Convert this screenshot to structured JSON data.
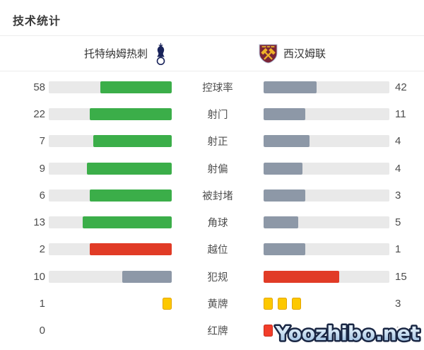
{
  "title": "技术统计",
  "header": {
    "home_team": "托特纳姆热刺",
    "away_team": "西汉姆联"
  },
  "colors": {
    "green": "#3bae49",
    "slate": "#8d98a7",
    "red": "#e13b26",
    "track": "#e9e9e9",
    "yellow_card_fill": "#fdc800",
    "yellow_card_border": "#e3a400",
    "red_card_fill": "#f23d2a",
    "red_card_border": "#c92d1d",
    "home_badge_navy": "#19235a",
    "away_badge_claret": "#7b2537",
    "away_badge_gold": "#efb328",
    "watermark_outline": "#1a2744"
  },
  "stats": [
    {
      "label": "控球率",
      "home": 58,
      "away": 42,
      "type": "bar",
      "home_color": "green",
      "away_color": "slate"
    },
    {
      "label": "射门",
      "home": 22,
      "away": 11,
      "type": "bar",
      "home_color": "green",
      "away_color": "slate"
    },
    {
      "label": "射正",
      "home": 7,
      "away": 4,
      "type": "bar",
      "home_color": "green",
      "away_color": "slate"
    },
    {
      "label": "射偏",
      "home": 9,
      "away": 4,
      "type": "bar",
      "home_color": "green",
      "away_color": "slate"
    },
    {
      "label": "被封堵",
      "home": 6,
      "away": 3,
      "type": "bar",
      "home_color": "green",
      "away_color": "slate"
    },
    {
      "label": "角球",
      "home": 13,
      "away": 5,
      "type": "bar",
      "home_color": "green",
      "away_color": "slate"
    },
    {
      "label": "越位",
      "home": 2,
      "away": 1,
      "type": "bar",
      "home_color": "red",
      "away_color": "slate"
    },
    {
      "label": "犯规",
      "home": 10,
      "away": 15,
      "type": "bar",
      "home_color": "slate",
      "away_color": "red"
    },
    {
      "label": "黄牌",
      "home": 1,
      "away": 3,
      "type": "cards",
      "card": "yellow"
    },
    {
      "label": "红牌",
      "home": 0,
      "away": 1,
      "type": "cards",
      "card": "red"
    }
  ],
  "watermark": "Yoozhibo.net",
  "chart_data": {
    "type": "bar",
    "orientation": "horizontal-paired",
    "title": "技术统计",
    "categories": [
      "控球率",
      "射门",
      "射正",
      "射偏",
      "被封堵",
      "角球",
      "越位",
      "犯规",
      "黄牌",
      "红牌"
    ],
    "series": [
      {
        "name": "托特纳姆热刺",
        "values": [
          58,
          22,
          7,
          9,
          6,
          13,
          2,
          10,
          1,
          0
        ]
      },
      {
        "name": "西汉姆联",
        "values": [
          42,
          11,
          4,
          4,
          3,
          5,
          1,
          15,
          3,
          1
        ]
      }
    ],
    "notes": "控球率 is percent; each pair of bars is scaled so fill = value/(home+away); 黄牌/红牌 rows drawn as card icons instead of bars",
    "legend_position": "top-as-team-header",
    "grid": false
  }
}
